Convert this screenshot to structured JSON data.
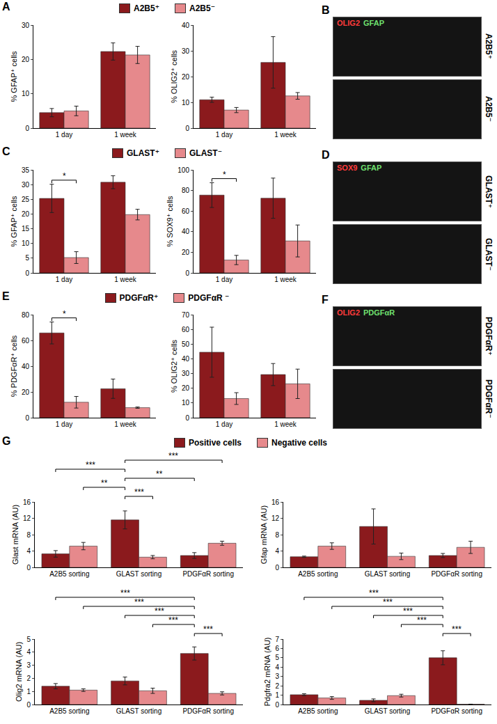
{
  "chart_data": [
    {
      "panel": "A",
      "type": "bar",
      "categories": [
        "1 day",
        "1 week"
      ],
      "ylabel": "% GFAP⁺ cells",
      "ylim": [
        0,
        30
      ],
      "yticks": [
        0,
        10,
        20,
        30
      ],
      "legend": "top",
      "series": [
        {
          "name": "A2B5⁺",
          "color": "#8b1a1d",
          "values": [
            4.5,
            22.3
          ],
          "errors": [
            1.2,
            2.5
          ]
        },
        {
          "name": "A2B5⁻",
          "color": "#e6898c",
          "values": [
            5.0,
            21.3
          ],
          "errors": [
            1.4,
            2.5
          ]
        }
      ],
      "significance": []
    },
    {
      "panel": "A",
      "type": "bar",
      "categories": [
        "1 day",
        "1 week"
      ],
      "ylabel": "% OLIG2⁺ cells",
      "ylim": [
        0,
        40
      ],
      "yticks": [
        0,
        10,
        20,
        30,
        40
      ],
      "series": [
        {
          "name": "A2B5⁺",
          "color": "#8b1a1d",
          "values": [
            11.0,
            25.5
          ],
          "errors": [
            1.0,
            10.0
          ]
        },
        {
          "name": "A2B5⁻",
          "color": "#e6898c",
          "values": [
            7.0,
            12.5
          ],
          "errors": [
            1.0,
            1.3
          ]
        }
      ],
      "significance": []
    },
    {
      "panel": "C",
      "type": "bar",
      "categories": [
        "1 day",
        "1 week"
      ],
      "ylabel": "% GFAP⁺ cells",
      "ylim": [
        0,
        35
      ],
      "yticks": [
        0,
        5,
        10,
        15,
        20,
        25,
        30,
        35
      ],
      "legend": "top",
      "series": [
        {
          "name": "GLAST⁺",
          "color": "#8b1a1d",
          "values": [
            25.3,
            30.8
          ],
          "errors": [
            4.8,
            2.2
          ]
        },
        {
          "name": "GLAST⁻",
          "color": "#e6898c",
          "values": [
            5.2,
            19.8
          ],
          "errors": [
            2.0,
            1.8
          ]
        }
      ],
      "significance": [
        {
          "between": [
            [
              "1 day",
              "GLAST⁺"
            ],
            [
              "1 day",
              "GLAST⁻"
            ]
          ],
          "label": "*"
        }
      ]
    },
    {
      "panel": "C",
      "type": "bar",
      "categories": [
        "1 day",
        "1 week"
      ],
      "ylabel": "% SOX9⁺ cells",
      "ylim": [
        0,
        100
      ],
      "yticks": [
        0,
        20,
        40,
        60,
        80,
        100
      ],
      "series": [
        {
          "name": "GLAST⁺",
          "color": "#8b1a1d",
          "values": [
            75.5,
            72.5
          ],
          "errors": [
            12.0,
            19.5
          ]
        },
        {
          "name": "GLAST⁻",
          "color": "#e6898c",
          "values": [
            12.5,
            31.0
          ],
          "errors": [
            4.5,
            15.5
          ]
        }
      ],
      "significance": [
        {
          "between": [
            [
              "1 day",
              "GLAST⁺"
            ],
            [
              "1 day",
              "GLAST⁻"
            ]
          ],
          "label": "*"
        }
      ]
    },
    {
      "panel": "E",
      "type": "bar",
      "categories": [
        "1 day",
        "1 week"
      ],
      "ylabel": "% PDGFαR⁺ cells",
      "ylim": [
        0,
        80
      ],
      "yticks": [
        0,
        20,
        40,
        60,
        80
      ],
      "legend": "top",
      "series": [
        {
          "name": "PDGFαR⁺",
          "color": "#8b1a1d",
          "values": [
            65.8,
            22.5
          ],
          "errors": [
            8.5,
            7.5
          ]
        },
        {
          "name": "PDGFαR ⁻",
          "color": "#e6898c",
          "values": [
            12.0,
            7.8
          ],
          "errors": [
            4.5,
            0.5
          ]
        }
      ],
      "significance": [
        {
          "between": [
            [
              "1 day",
              "PDGFαR⁺"
            ],
            [
              "1 day",
              "PDGFαR ⁻"
            ]
          ],
          "label": "*"
        }
      ]
    },
    {
      "panel": "E",
      "type": "bar",
      "categories": [
        "1 day",
        "1 week"
      ],
      "ylabel": "% OLIG2⁺ cells",
      "ylim": [
        0,
        70
      ],
      "yticks": [
        0,
        10,
        20,
        30,
        40,
        50,
        60,
        70
      ],
      "series": [
        {
          "name": "PDGFαR⁺",
          "color": "#8b1a1d",
          "values": [
            44.5,
            29.3
          ],
          "errors": [
            17.0,
            7.5
          ]
        },
        {
          "name": "PDGFαR ⁻",
          "color": "#e6898c",
          "values": [
            13.0,
            23.0
          ],
          "errors": [
            4.0,
            10.0
          ]
        }
      ],
      "significance": []
    },
    {
      "panel": "G",
      "type": "bar",
      "categories": [
        "A2B5 sorting",
        "GLAST sorting",
        "PDGFαR sorting"
      ],
      "ylabel": "Glast mRNA (AU)",
      "ylim": [
        0,
        16
      ],
      "yticks": [
        0,
        4,
        8,
        12,
        16
      ],
      "legend": "top",
      "series": [
        {
          "name": "Positive cells",
          "color": "#8b1a1d",
          "values": [
            3.3,
            11.6,
            2.9
          ],
          "errors": [
            0.8,
            2.2,
            0.7
          ]
        },
        {
          "name": "Negative cells",
          "color": "#e6898c",
          "values": [
            5.2,
            2.5,
            5.9
          ],
          "errors": [
            0.9,
            0.4,
            0.5
          ]
        }
      ],
      "significance": [
        {
          "between": [
            [
              "GLAST sorting",
              "Positive cells"
            ],
            [
              "GLAST sorting",
              "Negative cells"
            ]
          ],
          "label": "***"
        },
        {
          "between": [
            [
              "A2B5 sorting",
              "Negative cells"
            ],
            [
              "GLAST sorting",
              "Positive cells"
            ]
          ],
          "label": "**"
        },
        {
          "between": [
            [
              "GLAST sorting",
              "Positive cells"
            ],
            [
              "PDGFαR sorting",
              "Positive cells"
            ]
          ],
          "label": "**"
        },
        {
          "between": [
            [
              "A2B5 sorting",
              "Positive cells"
            ],
            [
              "GLAST sorting",
              "Positive cells"
            ]
          ],
          "label": "***"
        },
        {
          "between": [
            [
              "GLAST sorting",
              "Positive cells"
            ],
            [
              "PDGFαR sorting",
              "Negative cells"
            ]
          ],
          "label": "***"
        }
      ]
    },
    {
      "panel": "G",
      "type": "bar",
      "categories": [
        "A2B5 sorting",
        "GLAST sorting",
        "PDGFαR sorting"
      ],
      "ylabel": "Gfap mRNA (AU)",
      "ylim": [
        0,
        16
      ],
      "yticks": [
        0,
        4,
        8,
        12,
        16
      ],
      "series": [
        {
          "name": "Positive cells",
          "color": "#8b1a1d",
          "values": [
            2.6,
            10.0,
            2.9
          ],
          "errors": [
            0.15,
            4.3,
            0.5
          ]
        },
        {
          "name": "Negative cells",
          "color": "#e6898c",
          "values": [
            5.2,
            2.7,
            4.9
          ],
          "errors": [
            0.8,
            0.8,
            1.5
          ]
        }
      ],
      "significance": []
    },
    {
      "panel": "G",
      "type": "bar",
      "categories": [
        "A2B5 sorting",
        "GLAST sorting",
        "PDGFαR sorting"
      ],
      "ylabel": "Olig2 mRNA (AU)",
      "ylim": [
        0,
        5
      ],
      "yticks": [
        0,
        1,
        2,
        3,
        4,
        5
      ],
      "series": [
        {
          "name": "Positive cells",
          "color": "#8b1a1d",
          "values": [
            1.4,
            1.8,
            3.9
          ],
          "errors": [
            0.2,
            0.3,
            0.5
          ]
        },
        {
          "name": "Negative cells",
          "color": "#e6898c",
          "values": [
            1.1,
            1.05,
            0.85
          ],
          "errors": [
            0.1,
            0.2,
            0.12
          ]
        }
      ],
      "significance": [
        {
          "between": [
            [
              "PDGFαR sorting",
              "Positive cells"
            ],
            [
              "PDGFαR sorting",
              "Negative cells"
            ]
          ],
          "label": "***"
        },
        {
          "between": [
            [
              "GLAST sorting",
              "Negative cells"
            ],
            [
              "PDGFαR sorting",
              "Positive cells"
            ]
          ],
          "label": "***"
        },
        {
          "between": [
            [
              "GLAST sorting",
              "Positive cells"
            ],
            [
              "PDGFαR sorting",
              "Positive cells"
            ]
          ],
          "label": "***"
        },
        {
          "between": [
            [
              "A2B5 sorting",
              "Negative cells"
            ],
            [
              "PDGFαR sorting",
              "Positive cells"
            ]
          ],
          "label": "***"
        },
        {
          "between": [
            [
              "A2B5 sorting",
              "Positive cells"
            ],
            [
              "PDGFαR sorting",
              "Positive cells"
            ]
          ],
          "label": "***"
        }
      ]
    },
    {
      "panel": "G",
      "type": "bar",
      "categories": [
        "A2B5 sorting",
        "GLAST sorting",
        "PDGFαR sorting"
      ],
      "ylabel": "Pdgfra2 mRNA (AU)",
      "ylim": [
        0,
        7
      ],
      "yticks": [
        0,
        1,
        2,
        3,
        4,
        5,
        6,
        7
      ],
      "series": [
        {
          "name": "Positive cells",
          "color": "#8b1a1d",
          "values": [
            1.05,
            0.45,
            5.0
          ],
          "errors": [
            0.1,
            0.15,
            0.75
          ]
        },
        {
          "name": "Negative cells",
          "color": "#e6898c",
          "values": [
            0.7,
            0.95,
            0.03
          ],
          "errors": [
            0.15,
            0.15,
            0.01
          ]
        }
      ],
      "significance": [
        {
          "between": [
            [
              "PDGFαR sorting",
              "Positive cells"
            ],
            [
              "PDGFαR sorting",
              "Negative cells"
            ]
          ],
          "label": "***"
        },
        {
          "between": [
            [
              "GLAST sorting",
              "Negative cells"
            ],
            [
              "PDGFαR sorting",
              "Positive cells"
            ]
          ],
          "label": "***"
        },
        {
          "between": [
            [
              "GLAST sorting",
              "Positive cells"
            ],
            [
              "PDGFαR sorting",
              "Positive cells"
            ]
          ],
          "label": "***"
        },
        {
          "between": [
            [
              "A2B5 sorting",
              "Negative cells"
            ],
            [
              "PDGFαR sorting",
              "Positive cells"
            ]
          ],
          "label": "***"
        },
        {
          "between": [
            [
              "A2B5 sorting",
              "Positive cells"
            ],
            [
              "PDGFαR sorting",
              "Positive cells"
            ]
          ],
          "label": "***"
        }
      ]
    }
  ],
  "images": [
    {
      "panel": "B",
      "stains": [
        {
          "text": "OLIG2",
          "color": "#ff3b3b"
        },
        {
          "text": "GFAP",
          "color": "#6fe06f"
        }
      ],
      "rows": [
        "A2B5⁺",
        "A2B5⁻"
      ]
    },
    {
      "panel": "D",
      "stains": [
        {
          "text": "SOX9",
          "color": "#ff3b3b"
        },
        {
          "text": "GFAP",
          "color": "#6fe06f"
        }
      ],
      "rows": [
        "GLAST⁺",
        "GLAST⁻"
      ]
    },
    {
      "panel": "F",
      "stains": [
        {
          "text": "OLIG2",
          "color": "#ff3b3b"
        },
        {
          "text": "PDGFαR",
          "color": "#6fe06f"
        }
      ],
      "rows": [
        "PDGFαR⁺",
        "PDGFαR⁻"
      ]
    }
  ]
}
